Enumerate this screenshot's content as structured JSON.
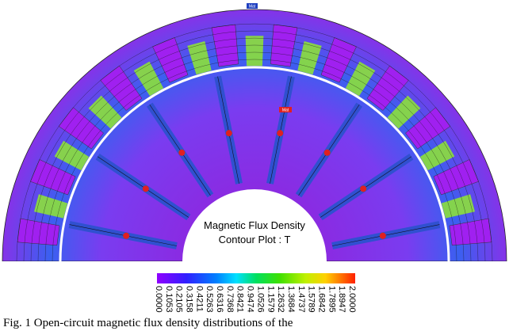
{
  "figure": {
    "marker_labels": [
      "Mat",
      "Mat"
    ],
    "plot_label": [
      "Magnetic Flux Density",
      "Contour Plot : T"
    ],
    "colorbar": {
      "ticks": [
        "0.0000",
        "0.1053",
        "0.2105",
        "0.3158",
        "0.4211",
        "0.5263",
        "0.6316",
        "0.7368",
        "0.8421",
        "0.9474",
        "1.0526",
        "1.1579",
        "1.2632",
        "1.3684",
        "1.4737",
        "1.5789",
        "1.6842",
        "1.7895",
        "1.8947",
        "2.0000"
      ]
    },
    "caption": "Fig. 1   Open-circuit magnetic flux density distributions of the"
  }
}
